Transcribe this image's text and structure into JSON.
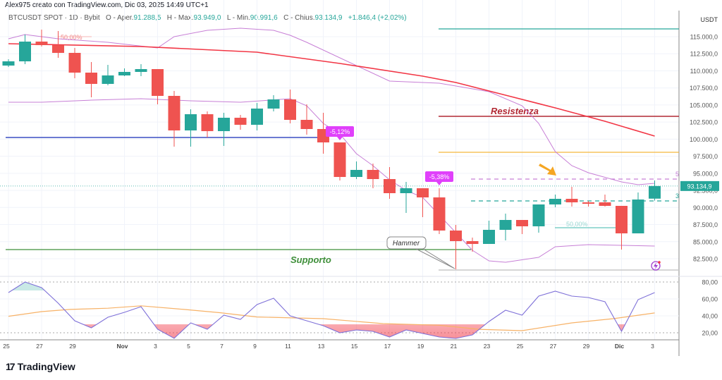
{
  "header": {
    "credit": "Alex975 creato con TradingView.com, Dic 03, 2025 14:49 UTC+1",
    "symbol": "BTCUSDT SPOT · 1D · Bybit",
    "open_label": "O - Aper.",
    "open": "91.288,5",
    "high_label": "H - Max.",
    "high": "93.949,0",
    "low_label": "L - Min.",
    "low": "90.991,6",
    "close_label": "C - Chius.",
    "close": "93.134,9",
    "change": "+1.846,4 (+2,02%)"
  },
  "price_axis": {
    "currency": "USDT",
    "labels": [
      "115.000,0",
      "112.500,0",
      "110.000,0",
      "107.500,0",
      "105.000,0",
      "102.500,0",
      "100.000,0",
      "97.500,0",
      "95.000,0",
      "92.500,0",
      "90.000,0",
      "87.500,0",
      "85.000,0",
      "82.500,0"
    ],
    "current_price": "93.134,9"
  },
  "rsi_axis": {
    "labels": [
      "80,00",
      "60,00",
      "40,00",
      "20,00"
    ]
  },
  "date_axis": {
    "labels": [
      {
        "t": "25",
        "i": 0
      },
      {
        "t": "27",
        "i": 2
      },
      {
        "t": "29",
        "i": 4
      },
      {
        "t": "Nov",
        "i": 7
      },
      {
        "t": "3",
        "i": 9
      },
      {
        "t": "5",
        "i": 11
      },
      {
        "t": "7",
        "i": 13
      },
      {
        "t": "9",
        "i": 15
      },
      {
        "t": "11",
        "i": 17
      },
      {
        "t": "13",
        "i": 19
      },
      {
        "t": "15",
        "i": 21
      },
      {
        "t": "17",
        "i": 23
      },
      {
        "t": "19",
        "i": 25
      },
      {
        "t": "21",
        "i": 27
      },
      {
        "t": "23",
        "i": 29
      },
      {
        "t": "25",
        "i": 31
      },
      {
        "t": "27",
        "i": 33
      },
      {
        "t": "29",
        "i": 35
      },
      {
        "t": "Dic",
        "i": 37
      },
      {
        "t": "3",
        "i": 39
      }
    ]
  },
  "colors": {
    "up": "#26a69a",
    "down": "#ef5350",
    "ma": "#f23645",
    "bb": "#c77fd6",
    "rsi": "#7e70d8",
    "rsi_ma": "#f7b267",
    "marker": "#e040fb"
  },
  "candles": [
    [
      110769,
      111698,
      110562,
      111388
    ],
    [
      111388,
      115310,
      110975,
      114278
    ],
    [
      114278,
      116032,
      113555,
      113762
    ],
    [
      113762,
      115826,
      111904,
      112626
    ],
    [
      112626,
      113349,
      108911,
      109737
    ],
    [
      109737,
      111285,
      106125,
      108086
    ],
    [
      108086,
      110872,
      107880,
      109324
    ],
    [
      109324,
      110356,
      109221,
      109840
    ],
    [
      109840,
      110975,
      109221,
      110253
    ],
    [
      110253,
      110253,
      105093,
      106331
    ],
    [
      106331,
      107054,
      98901,
      101274
    ],
    [
      101274,
      104370,
      98901,
      103648
    ],
    [
      103648,
      104061,
      100242,
      101171
    ],
    [
      101171,
      103854,
      99004,
      103132
    ],
    [
      103132,
      103545,
      101378,
      102100
    ],
    [
      102100,
      105299,
      101274,
      104474
    ],
    [
      104474,
      106434,
      104061,
      105815
    ],
    [
      105815,
      107260,
      102306,
      102822
    ],
    [
      102822,
      105093,
      100655,
      101481
    ],
    [
      101481,
      103854,
      97869,
      99520
    ],
    [
      99520,
      99520,
      93947,
      94463
    ],
    [
      94463,
      96734,
      94154,
      95495
    ],
    [
      95495,
      96424,
      92811,
      94154
    ],
    [
      94154,
      95908,
      91264,
      92090
    ],
    [
      92090,
      93741,
      89200,
      92811
    ],
    [
      92811,
      92811,
      88581,
      91470
    ],
    [
      91470,
      92811,
      86104,
      86620
    ],
    [
      86620,
      87446,
      80944,
      85072
    ],
    [
      85072,
      85588,
      83524,
      84659
    ],
    [
      84659,
      88065,
      84659,
      86723
    ],
    [
      86723,
      89097,
      85175,
      88168
    ],
    [
      88168,
      88168,
      86104,
      87239
    ],
    [
      87239,
      90438,
      86310,
      90438
    ],
    [
      90438,
      91883,
      90026,
      91264
    ],
    [
      91264,
      93018,
      90129,
      90748
    ],
    [
      90748,
      90955,
      90129,
      90645
    ],
    [
      90748,
      91883,
      90129,
      90232
    ],
    [
      90232,
      90232,
      83834,
      86207
    ],
    [
      86207,
      92192,
      86207,
      91160
    ],
    [
      91288.5,
      93949,
      90991.6,
      93134.9
    ]
  ],
  "moving_average": [
    [
      0,
      113968
    ],
    [
      8,
      113555
    ],
    [
      15,
      112730
    ],
    [
      20,
      111078
    ],
    [
      25,
      109221
    ],
    [
      27,
      108292
    ],
    [
      30,
      106434
    ],
    [
      33,
      104577
    ],
    [
      36,
      102616
    ],
    [
      39,
      100449
    ]
  ],
  "bollinger_upper": [
    [
      0,
      114690
    ],
    [
      1,
      115310
    ],
    [
      3,
      114690
    ],
    [
      6,
      114174
    ],
    [
      9,
      113349
    ],
    [
      10,
      115000
    ],
    [
      12,
      115929
    ],
    [
      14,
      116238
    ],
    [
      16,
      115929
    ],
    [
      17,
      115206
    ],
    [
      18,
      114174
    ],
    [
      23,
      108498
    ],
    [
      25,
      108292
    ],
    [
      26,
      108189
    ],
    [
      29,
      106950
    ],
    [
      31,
      104886
    ],
    [
      32,
      102306
    ],
    [
      33,
      98178
    ],
    [
      34,
      96114
    ],
    [
      35,
      95082
    ],
    [
      37,
      93741
    ],
    [
      38,
      93328
    ],
    [
      39,
      93534
    ]
  ],
  "bollinger_lower": [
    [
      0,
      105402
    ],
    [
      2,
      105402
    ],
    [
      5,
      105712
    ],
    [
      8,
      105918
    ],
    [
      11,
      105609
    ],
    [
      14,
      105402
    ],
    [
      17,
      105918
    ],
    [
      18,
      104886
    ],
    [
      19,
      102306
    ],
    [
      20,
      100758
    ],
    [
      21,
      97869
    ],
    [
      22,
      96114
    ],
    [
      23,
      94050
    ],
    [
      24,
      92502
    ],
    [
      25,
      91470
    ],
    [
      26,
      88890
    ],
    [
      27,
      86310
    ],
    [
      28,
      83730
    ],
    [
      29,
      82182
    ],
    [
      30,
      81976
    ],
    [
      32,
      82698
    ],
    [
      33,
      84246
    ],
    [
      35,
      84556
    ],
    [
      37,
      84453
    ],
    [
      39,
      84350
    ]
  ],
  "rsi": [
    67.5,
    80,
    73.3,
    55,
    34.2,
    25.8,
    38.3,
    44.2,
    50.8,
    24.2,
    13.5,
    31.7,
    24.2,
    40.8,
    35.8,
    53.3,
    60.8,
    40,
    34.2,
    28.3,
    20,
    23.3,
    21.7,
    15,
    23.3,
    19.2,
    15,
    13.3,
    17.5,
    33.3,
    46.7,
    40.8,
    63.3,
    69.2,
    63.3,
    61.7,
    56.7,
    21.7,
    59.2,
    67.5
  ],
  "rsi_ma": [
    [
      0,
      39.5
    ],
    [
      2,
      45
    ],
    [
      3.7,
      47.6
    ],
    [
      6,
      49
    ],
    [
      8,
      51.8
    ],
    [
      10.6,
      47.6
    ],
    [
      12.8,
      43.7
    ],
    [
      15,
      38.7
    ],
    [
      19,
      36.7
    ],
    [
      22.6,
      30.8
    ],
    [
      26,
      28.9
    ],
    [
      28.4,
      24.1
    ],
    [
      31,
      22.5
    ],
    [
      34,
      31.7
    ],
    [
      36.5,
      36.7
    ],
    [
      39,
      43.4
    ]
  ],
  "levels": {
    "top_teal": 116135,
    "resistance": {
      "price": 103338,
      "label": "Resistenza"
    },
    "orange": 98075,
    "blue": 100242,
    "support": {
      "price": 83834,
      "label": "Supporto"
    },
    "dashed_purple": {
      "price": 94154,
      "tag": "5"
    },
    "dashed_teal": {
      "price": 90954,
      "tag": "3"
    },
    "short_teal": {
      "price": 87033,
      "label": "50,00%"
    }
  },
  "annotations": {
    "fib_label": "50,00%",
    "drop1": "-5,12%",
    "drop2": "-5,38%",
    "hammer": "Hammer"
  },
  "branding": {
    "logo_text": "TradingView"
  }
}
